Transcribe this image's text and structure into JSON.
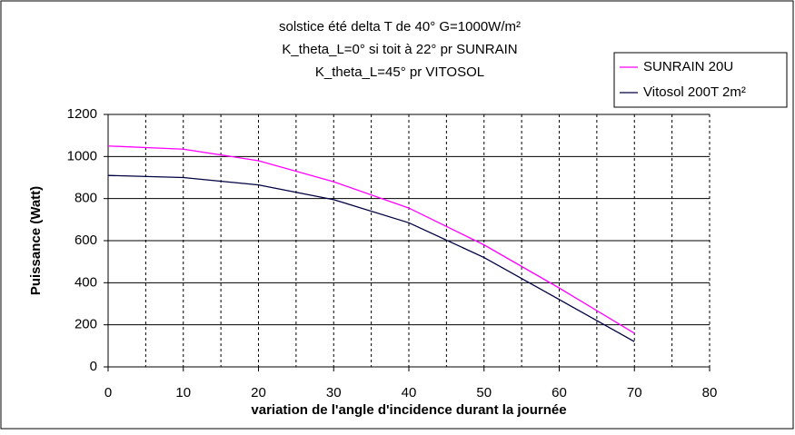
{
  "chart_data": {
    "type": "line",
    "title": [
      "solstice été delta T de 40° G=1000W/m²",
      "K_theta_L=0° si toit à 22° pr SUNRAIN",
      "K_theta_L=45° pr VITOSOL"
    ],
    "x_label": "variation de l'angle d'incidence durant la journée",
    "y_label": "Puissance (Watt)",
    "x": [
      0,
      10,
      20,
      30,
      40,
      50,
      60,
      70
    ],
    "series": [
      {
        "name": "SUNRAIN 20U",
        "color": "#ff00ff",
        "values": [
          1050,
          1035,
          980,
          880,
          755,
          580,
          375,
          160
        ]
      },
      {
        "name": "Vitosol 200T 2m²",
        "color": "#000040",
        "values": [
          910,
          900,
          865,
          795,
          685,
          520,
          320,
          120
        ]
      }
    ],
    "xlim": [
      0,
      80
    ],
    "xticks": [
      0,
      10,
      20,
      30,
      40,
      50,
      60,
      70,
      80
    ],
    "xgrid": [
      5,
      10,
      15,
      20,
      25,
      30,
      35,
      40,
      45,
      50,
      55,
      60,
      65,
      70,
      75,
      80
    ],
    "ylim": [
      0,
      1200
    ],
    "yticks": [
      0,
      200,
      400,
      600,
      800,
      1000,
      1200
    ],
    "grid": true,
    "legend": "top-right"
  }
}
